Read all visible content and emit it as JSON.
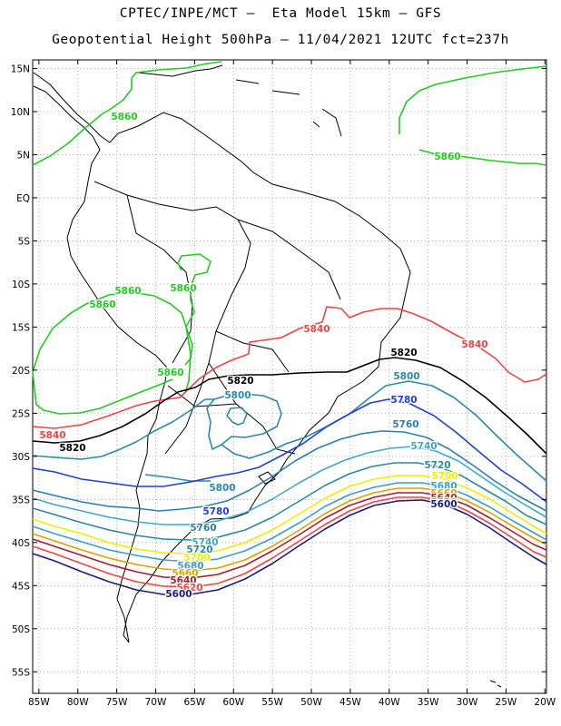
{
  "title": {
    "line1": "CPTEC/INPE/MCT –  Eta Model 15km – GFS",
    "line2": "Geopotential Height 500hPa – 11/04/2021 12UTC fct=237h"
  },
  "axes": {
    "lat_labels": [
      "15N",
      "10N",
      "5N",
      "EQ",
      "5S",
      "10S",
      "15S",
      "20S",
      "25S",
      "30S",
      "35S",
      "40S",
      "45S",
      "50S",
      "55S"
    ],
    "lon_labels": [
      "85W",
      "80W",
      "75W",
      "70W",
      "65W",
      "60W",
      "55W",
      "50W",
      "45W",
      "40W",
      "35W",
      "30W",
      "25W",
      "20W"
    ],
    "lat_range": [
      16,
      -57.5
    ],
    "lon_range": [
      -85.8,
      -19.8
    ]
  },
  "contours": [
    {
      "value": 5860,
      "label": "5860",
      "color": "#22cc22"
    },
    {
      "value": 5840,
      "label": "5840",
      "color": "#ee4444"
    },
    {
      "value": 5820,
      "label": "5820",
      "color": "#000000"
    },
    {
      "value": 5800,
      "label": "5800",
      "color": "#2a8aa8"
    },
    {
      "value": 5780,
      "label": "5780",
      "color": "#1f3fdc"
    },
    {
      "value": 5760,
      "label": "5760",
      "color": "#2a7fb0"
    },
    {
      "value": 5740,
      "label": "5740",
      "color": "#3aaacc"
    },
    {
      "value": 5720,
      "label": "5720",
      "color": "#2a8a9a"
    },
    {
      "value": 5700,
      "label": "5700",
      "color": "#eeee00"
    },
    {
      "value": 5680,
      "label": "5680",
      "color": "#3aa0c0"
    },
    {
      "value": 5660,
      "label": "5660",
      "color": "#e0a000"
    },
    {
      "value": 5640,
      "label": "5640",
      "color": "#a02030"
    },
    {
      "value": 5620,
      "label": "5620",
      "color": "#ee4444"
    },
    {
      "value": 5600,
      "label": "5600",
      "color": "#1a1a80"
    }
  ]
}
